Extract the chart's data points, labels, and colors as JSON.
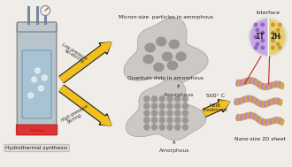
{
  "bg_color": "#f0ede8",
  "title_top": "Micron-size  particles in amorphous",
  "title_bottom": "Quantum dots in amorphous",
  "label_hydrothermal": "Hydrothermal synthesis",
  "label_amorphous1": "Amorphous",
  "label_amorphous2": "Amorphous",
  "label_heat": "500° C",
  "label_heat2": "Heat\ntreatment",
  "label_nanosheet": "Nano-size 2D sheet",
  "label_interface": "Interface",
  "label_1T": "1T",
  "label_2H": "2H",
  "arrow_top_text1": "Low pressure",
  "arrow_top_text2": "No-stirring",
  "arrow_bottom_text1": "High pressure",
  "arrow_bottom_text2": "Stirring",
  "reactor_body": "#b8c4cc",
  "reactor_liquid": "#a0b8cc",
  "reactor_base": "#dd3333",
  "arrow_color": "#f0c020",
  "arrow_edge": "#1a1a1a",
  "blob_fill": "#ccc8c4",
  "blob_edge": "#aaa8a4",
  "dot_large": "#8a8580",
  "dot_small": "#8a8580",
  "sheet_purple": "#b880cc",
  "sheet_yellow": "#d4a830",
  "circle_left": "#c8a8e0",
  "circle_right": "#e8d070",
  "red_line": "#cc2020"
}
